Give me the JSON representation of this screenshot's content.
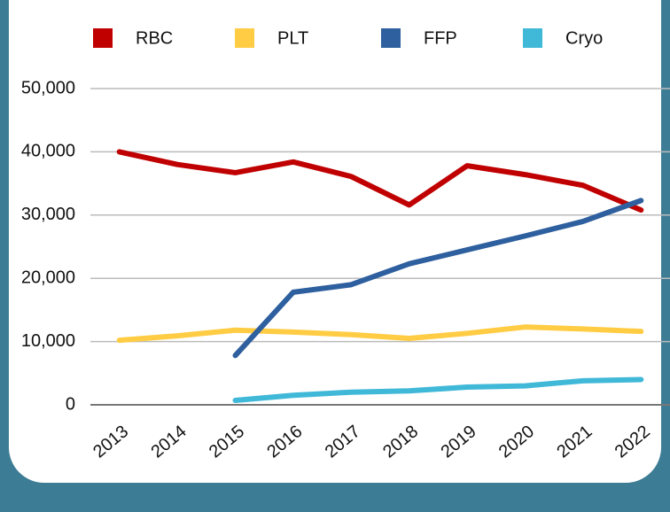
{
  "chart_data": {
    "type": "line",
    "categories": [
      "2013",
      "2014",
      "2015",
      "2016",
      "2017",
      "2018",
      "2019",
      "2020",
      "2021",
      "2022"
    ],
    "series": [
      {
        "name": "RBC",
        "color": "#c00000",
        "values": [
          40000,
          38000,
          36700,
          38400,
          36100,
          31600,
          37800,
          36400,
          34700,
          30800
        ]
      },
      {
        "name": "PLT",
        "color": "#ffcc44",
        "values": [
          10200,
          10900,
          11800,
          11500,
          11100,
          10500,
          11300,
          12300,
          12000,
          11600
        ]
      },
      {
        "name": "FFP",
        "color": "#2e5f9e",
        "values": [
          null,
          null,
          7800,
          17800,
          19000,
          22300,
          24500,
          26700,
          29000,
          32300
        ]
      },
      {
        "name": "Cryo",
        "color": "#40b8d8",
        "values": [
          null,
          null,
          700,
          1500,
          2000,
          2200,
          2800,
          3000,
          3800,
          4000
        ]
      }
    ],
    "ylim": [
      0,
      50000
    ],
    "yticks": [
      0,
      {
        "value": 10000,
        "label": "10,000"
      },
      {
        "value": 20000,
        "label": "20,000"
      },
      {
        "value": 30000,
        "label": "30,000"
      },
      {
        "value": 40000,
        "label": "40,000"
      },
      {
        "value": 50000,
        "label": "50,000"
      }
    ],
    "grid": true,
    "legend": "top"
  }
}
